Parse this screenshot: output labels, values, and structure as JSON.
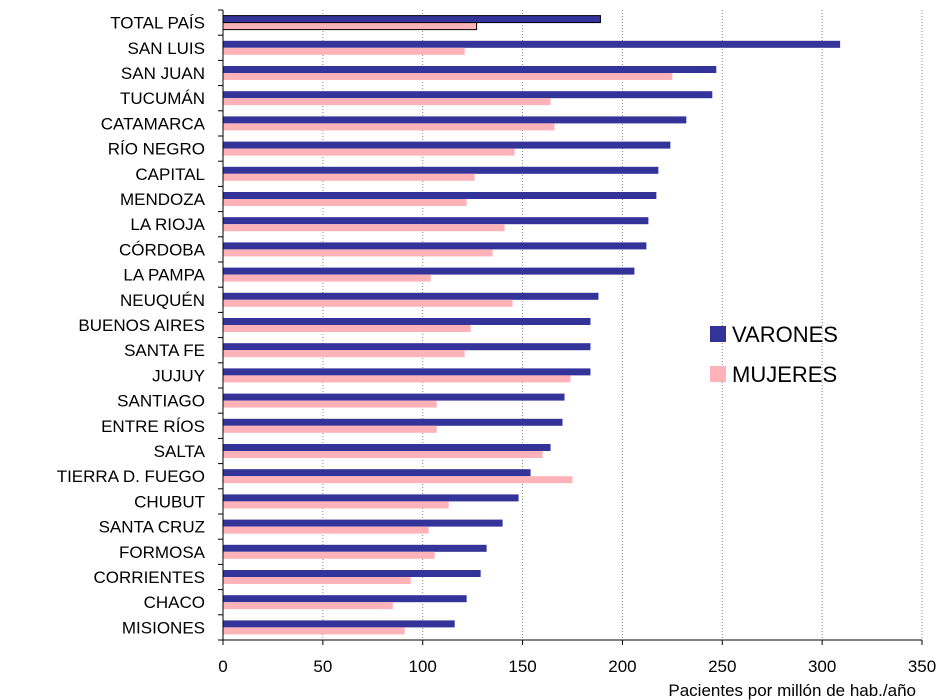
{
  "chart_data": {
    "type": "bar",
    "orientation": "horizontal",
    "categories": [
      "TOTAL PAÍS",
      "SAN LUIS",
      "SAN JUAN",
      "TUCUMÁN",
      "CATAMARCA",
      "RÍO NEGRO",
      "CAPITAL",
      "MENDOZA",
      "LA RIOJA",
      "CÓRDOBA",
      "LA PAMPA",
      "NEUQUÉN",
      "BUENOS AIRES",
      "SANTA FE",
      "JUJUY",
      "SANTIAGO",
      "ENTRE RÍOS",
      "SALTA",
      "TIERRA  D. FUEGO",
      "CHUBUT",
      "SANTA CRUZ",
      "FORMOSA",
      "CORRIENTES",
      "CHACO",
      "MISIONES"
    ],
    "series": [
      {
        "name": "VARONES",
        "color": "#333399",
        "values": [
          189,
          309,
          247,
          245,
          232,
          224,
          218,
          217,
          213,
          212,
          206,
          188,
          184,
          184,
          184,
          171,
          170,
          164,
          154,
          148,
          140,
          132,
          129,
          122,
          116
        ]
      },
      {
        "name": "MUJERES",
        "color": "#FFB3B8",
        "values": [
          127,
          121,
          225,
          164,
          166,
          146,
          126,
          122,
          141,
          135,
          104,
          145,
          124,
          121,
          174,
          107,
          107,
          160,
          175,
          113,
          103,
          106,
          94,
          85,
          91
        ]
      }
    ],
    "xlim": [
      0,
      350
    ],
    "xticks": [
      "0",
      "50",
      "100",
      "150",
      "200",
      "250",
      "300",
      "350"
    ],
    "xlabel": "Pacientes por millón de hab./año",
    "ylabel": "",
    "title": "",
    "grid": "vertical dotted",
    "legend_position": "right"
  }
}
